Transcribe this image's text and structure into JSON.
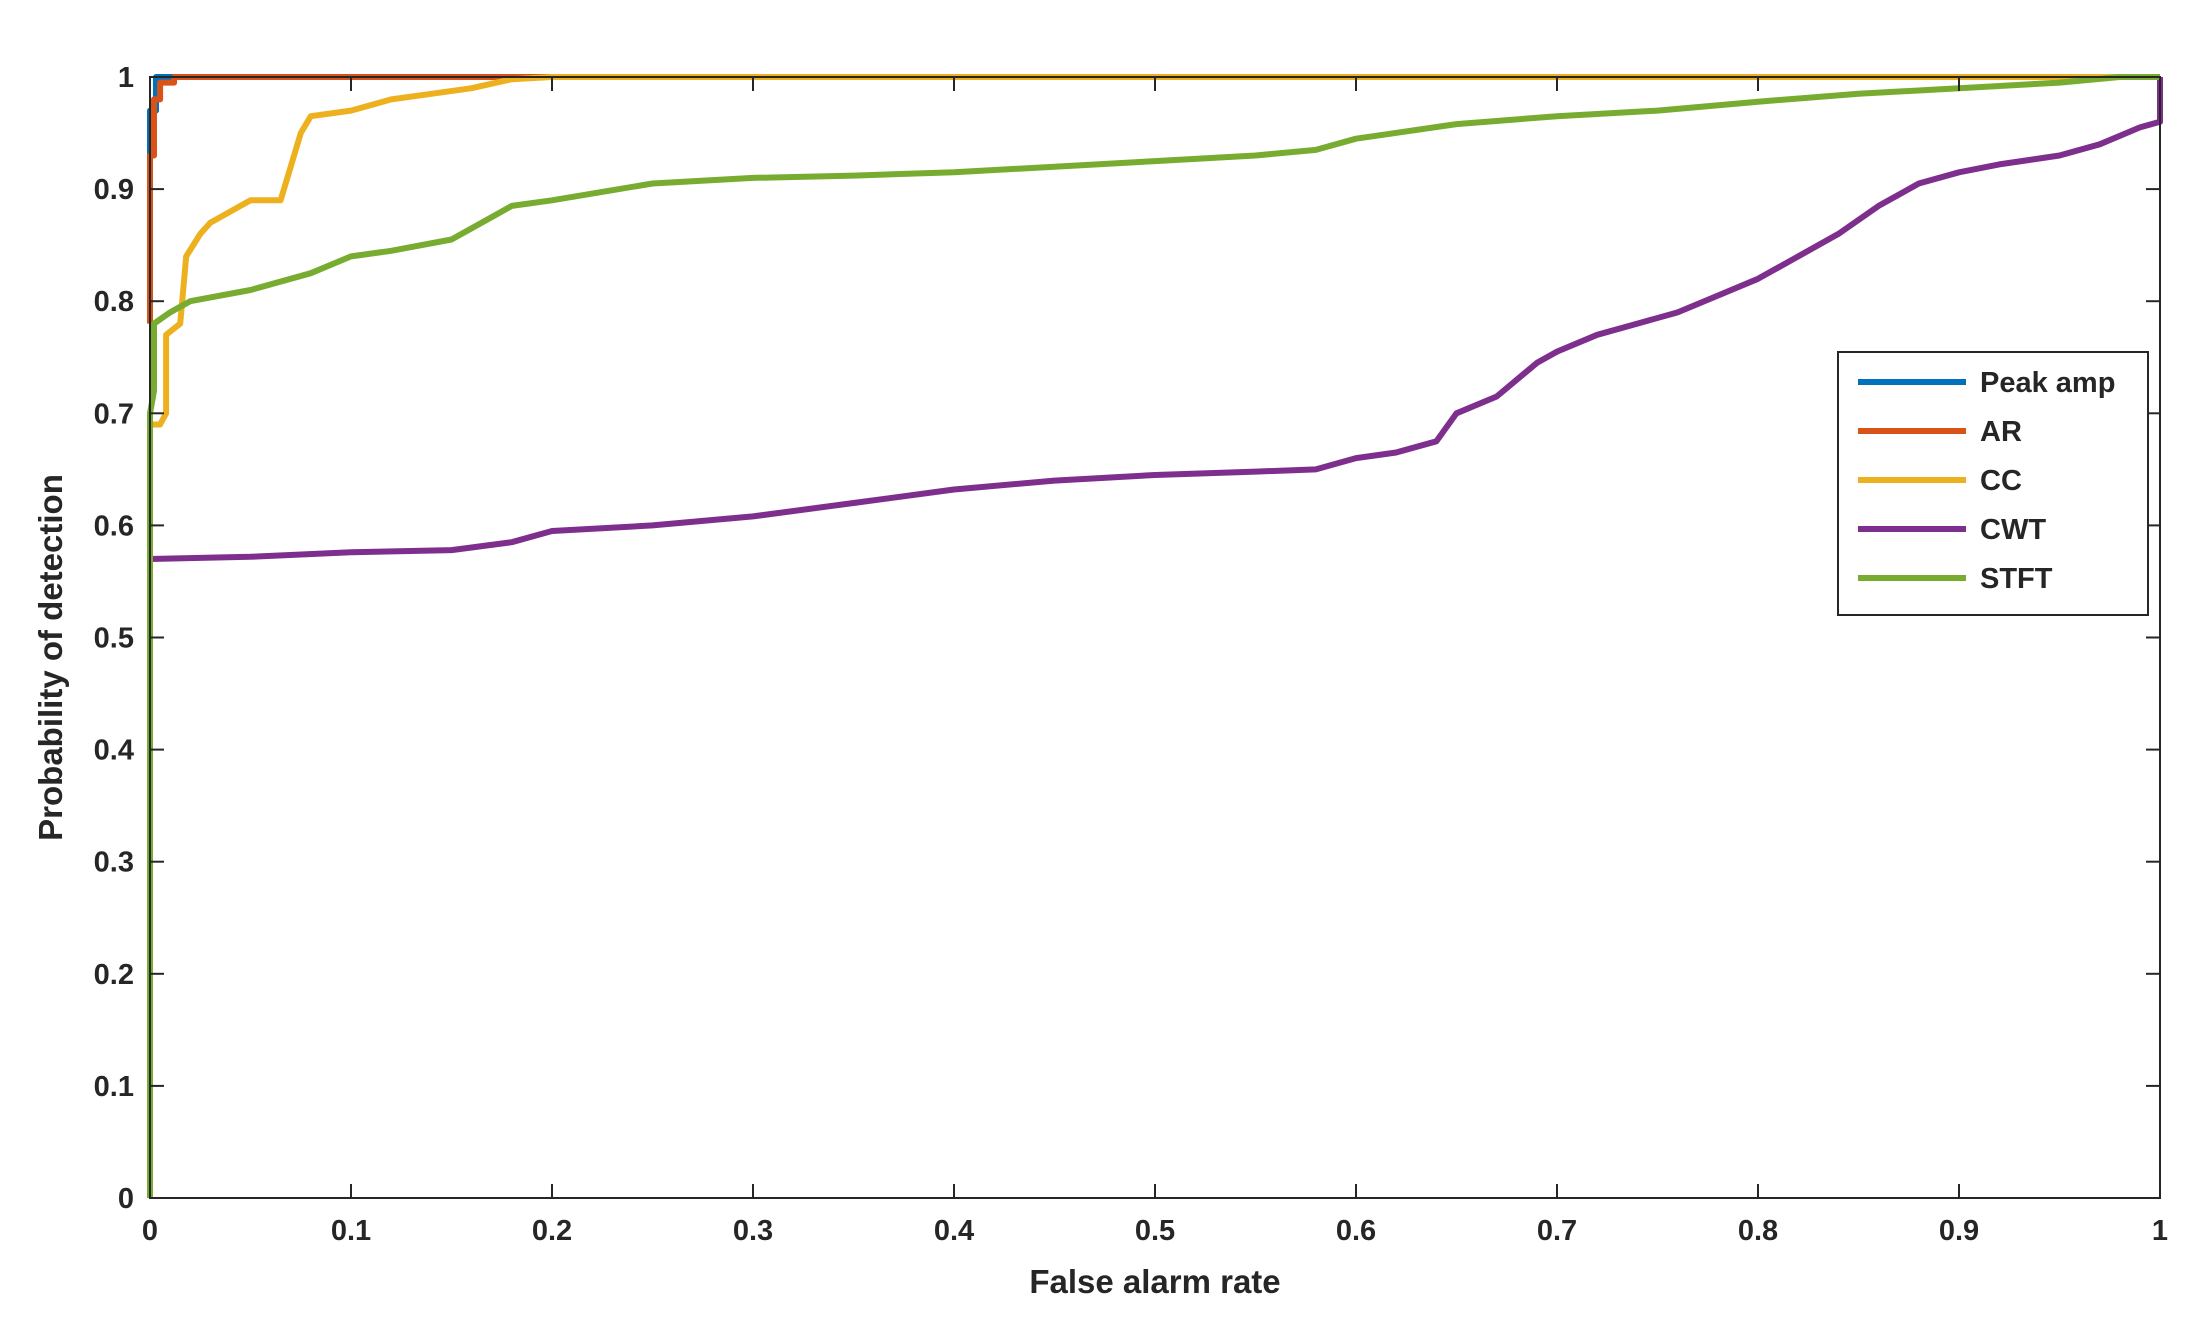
{
  "chart_data": {
    "type": "line",
    "title": "",
    "xlabel": "False alarm rate",
    "ylabel": "Probability of detection",
    "xlim": [
      0,
      1
    ],
    "ylim": [
      0,
      1
    ],
    "xticks": [
      "0",
      "0.1",
      "0.2",
      "0.3",
      "0.4",
      "0.5",
      "0.6",
      "0.7",
      "0.8",
      "0.9",
      "1"
    ],
    "yticks": [
      "0",
      "0.1",
      "0.2",
      "0.3",
      "0.4",
      "0.5",
      "0.6",
      "0.7",
      "0.8",
      "0.9",
      "1"
    ],
    "grid": false,
    "legend_position": "right",
    "series": [
      {
        "name": "Peak amp",
        "color": "#0072BD",
        "x": [
          0,
          0,
          0.003,
          0.003,
          0.01,
          1
        ],
        "y": [
          0.93,
          0.97,
          0.97,
          1.0,
          1.0,
          1.0
        ]
      },
      {
        "name": "AR",
        "color": "#D95319",
        "x": [
          0,
          0,
          0.002,
          0.002,
          0.005,
          0.005,
          0.012,
          0.012,
          0.03,
          0.06,
          0.1,
          0.15,
          0.18,
          1
        ],
        "y": [
          0.78,
          0.93,
          0.93,
          0.98,
          0.98,
          0.995,
          0.995,
          1.0,
          1.0,
          1.0,
          1.0,
          1.0,
          1.0,
          1.0
        ]
      },
      {
        "name": "CC",
        "color": "#EDB120",
        "x": [
          0,
          0.005,
          0.008,
          0.008,
          0.015,
          0.018,
          0.025,
          0.03,
          0.04,
          0.05,
          0.065,
          0.07,
          0.075,
          0.08,
          0.1,
          0.12,
          0.14,
          0.16,
          0.18,
          0.2,
          0.5,
          1
        ],
        "y": [
          0.69,
          0.69,
          0.7,
          0.77,
          0.78,
          0.84,
          0.86,
          0.87,
          0.88,
          0.89,
          0.89,
          0.92,
          0.95,
          0.965,
          0.97,
          0.98,
          0.985,
          0.99,
          0.998,
          1.0,
          1.0,
          1.0
        ]
      },
      {
        "name": "CWT",
        "color": "#7E2F8E",
        "x": [
          0,
          0.05,
          0.1,
          0.15,
          0.18,
          0.2,
          0.25,
          0.3,
          0.35,
          0.4,
          0.45,
          0.5,
          0.55,
          0.58,
          0.6,
          0.62,
          0.64,
          0.65,
          0.67,
          0.69,
          0.7,
          0.72,
          0.74,
          0.76,
          0.78,
          0.8,
          0.82,
          0.84,
          0.86,
          0.88,
          0.9,
          0.92,
          0.95,
          0.97,
          0.99,
          1,
          1
        ],
        "y": [
          0.57,
          0.572,
          0.576,
          0.578,
          0.585,
          0.595,
          0.6,
          0.608,
          0.62,
          0.632,
          0.64,
          0.645,
          0.648,
          0.65,
          0.66,
          0.665,
          0.675,
          0.7,
          0.715,
          0.745,
          0.755,
          0.77,
          0.78,
          0.79,
          0.805,
          0.82,
          0.84,
          0.86,
          0.885,
          0.905,
          0.915,
          0.922,
          0.93,
          0.94,
          0.955,
          0.96,
          1.0
        ]
      },
      {
        "name": "STFT",
        "color": "#77AC30",
        "x": [
          0,
          0,
          0.002,
          0.002,
          0.01,
          0.02,
          0.05,
          0.08,
          0.1,
          0.12,
          0.15,
          0.17,
          0.18,
          0.2,
          0.25,
          0.3,
          0.35,
          0.4,
          0.45,
          0.5,
          0.55,
          0.58,
          0.6,
          0.65,
          0.7,
          0.75,
          0.8,
          0.85,
          0.9,
          0.95,
          0.98,
          1
        ],
        "y": [
          0,
          0.7,
          0.72,
          0.78,
          0.79,
          0.8,
          0.81,
          0.825,
          0.84,
          0.845,
          0.855,
          0.875,
          0.885,
          0.89,
          0.905,
          0.91,
          0.912,
          0.915,
          0.92,
          0.925,
          0.93,
          0.935,
          0.945,
          0.958,
          0.965,
          0.97,
          0.978,
          0.985,
          0.99,
          0.995,
          1.0,
          1.0
        ]
      }
    ]
  }
}
